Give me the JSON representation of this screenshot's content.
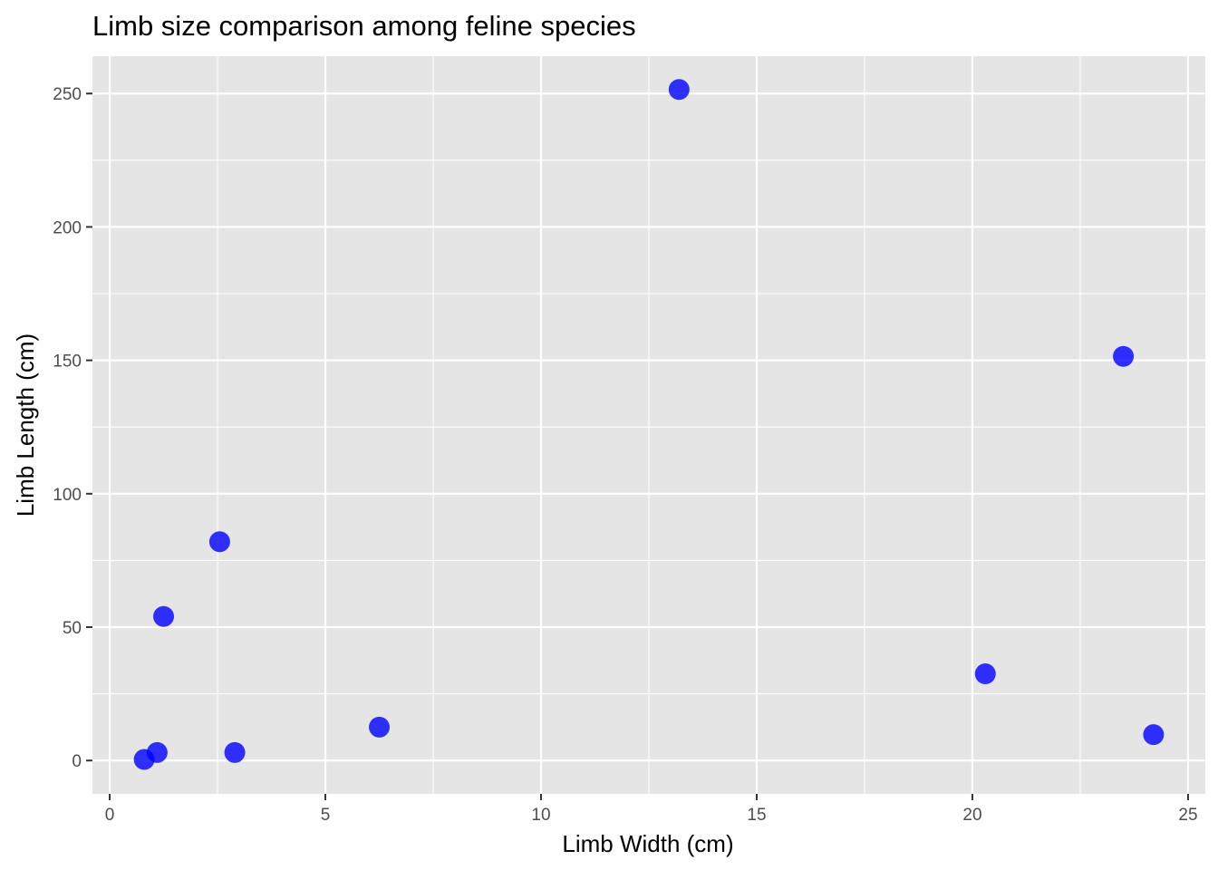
{
  "chart_data": {
    "type": "scatter",
    "title": "Limb size comparison among feline species",
    "xlabel": "Limb Width (cm)",
    "ylabel": "Limb Length (cm)",
    "xlim": [
      -0.4,
      25.4
    ],
    "ylim": [
      -12.5,
      264
    ],
    "x_ticks": [
      0,
      5,
      10,
      15,
      20,
      25
    ],
    "x_tick_labels": [
      "0",
      "5",
      "10",
      "15",
      "20",
      "25"
    ],
    "y_ticks": [
      0,
      50,
      100,
      150,
      200,
      250
    ],
    "y_tick_labels": [
      "0",
      "50",
      "100",
      "150",
      "200",
      "250"
    ],
    "grid": true,
    "legend": "none",
    "colors": {
      "panel_background": "#e5e5e5",
      "grid_line": "#ffffff",
      "point": "#0000ff",
      "tick_mark": "#333333"
    },
    "point_opacity": 0.8,
    "series": [
      {
        "x": [
          0.8,
          1.1,
          1.25,
          2.55,
          2.9,
          6.25,
          13.2,
          20.3,
          23.5,
          24.2
        ],
        "y": [
          0.4,
          3.0,
          54.0,
          82.0,
          3.0,
          12.5,
          251.5,
          32.5,
          151.5,
          9.7
        ]
      }
    ]
  }
}
